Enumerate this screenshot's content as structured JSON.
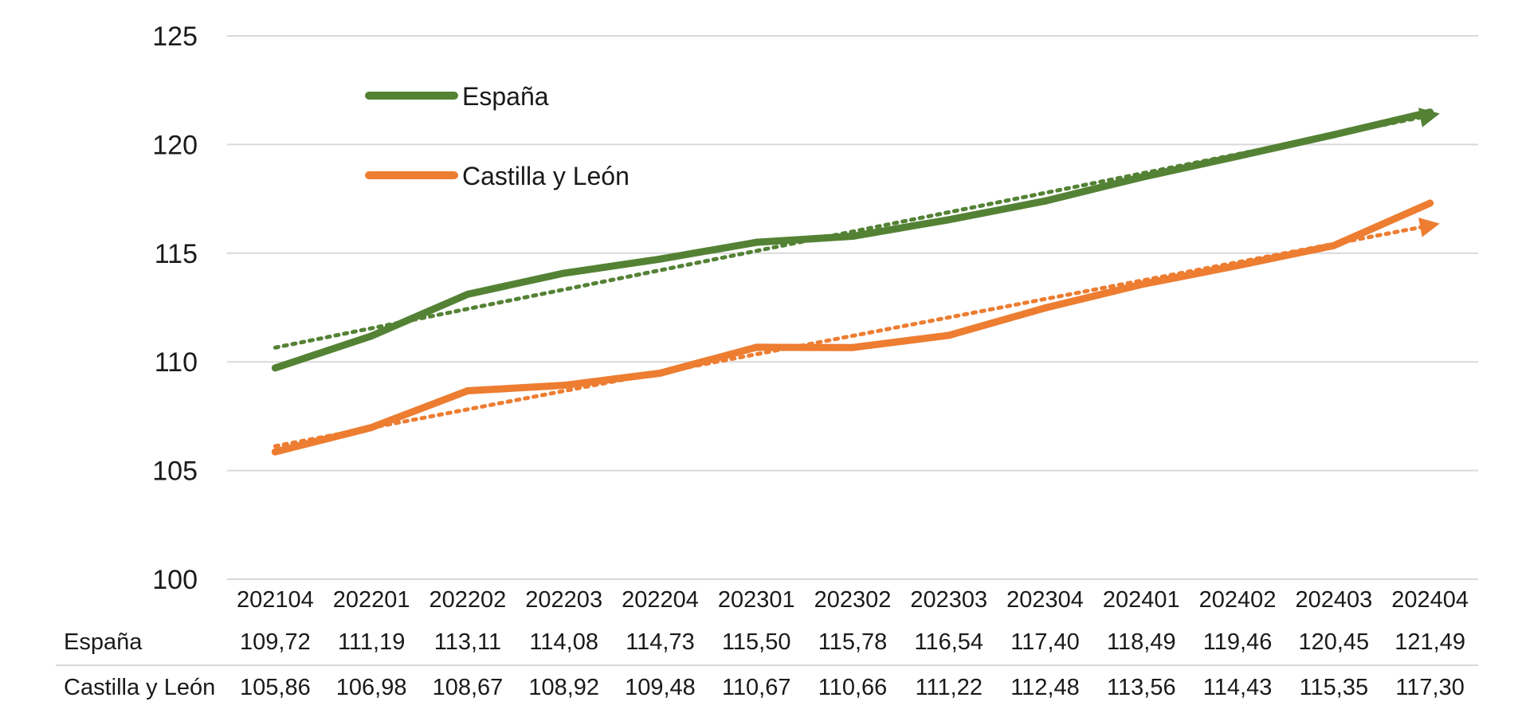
{
  "chart_data": {
    "type": "line",
    "title": "",
    "xlabel": "",
    "ylabel": "",
    "ylim": [
      100,
      125
    ],
    "yticks": [
      "100",
      "105",
      "110",
      "115",
      "120",
      "125"
    ],
    "grid": true,
    "legend_position": "top-left",
    "categories": [
      "202104",
      "202201",
      "202202",
      "202203",
      "202204",
      "202301",
      "202302",
      "202303",
      "202304",
      "202401",
      "202402",
      "202403",
      "202404"
    ],
    "series": [
      {
        "name": "España",
        "color": "#548235",
        "values": [
          109.72,
          111.19,
          113.11,
          114.08,
          114.73,
          115.5,
          115.78,
          116.54,
          117.4,
          118.49,
          119.46,
          120.45,
          121.49
        ],
        "labels": [
          "109,72",
          "111,19",
          "113,11",
          "114,08",
          "114,73",
          "115,50",
          "115,78",
          "116,54",
          "117,40",
          "118,49",
          "119,46",
          "120,45",
          "121,49"
        ],
        "trendline": "linear"
      },
      {
        "name": "Castilla y León",
        "color": "#ED7D31",
        "values": [
          105.86,
          106.98,
          108.67,
          108.92,
          109.48,
          110.67,
          110.66,
          111.22,
          112.48,
          113.56,
          114.43,
          115.35,
          117.3
        ],
        "labels": [
          "105,86",
          "106,98",
          "108,67",
          "108,92",
          "109,48",
          "110,67",
          "110,66",
          "111,22",
          "112,48",
          "113,56",
          "114,43",
          "115,35",
          "117,30"
        ],
        "trendline": "linear"
      }
    ]
  }
}
